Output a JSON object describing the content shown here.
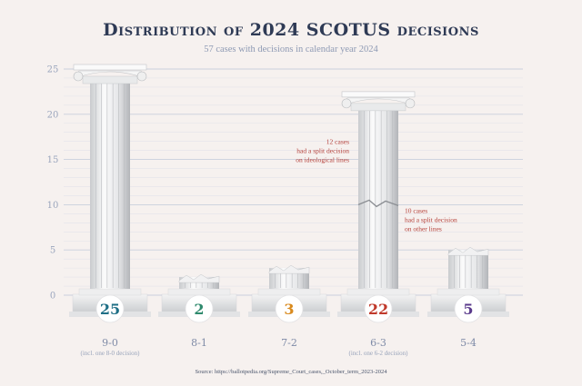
{
  "chart_data": {
    "type": "bar",
    "title": "Distribution of 2024 SCOTUS decisions",
    "subtitle": "57 cases with decisions in calendar year 2024",
    "categories": [
      "9-0",
      "8-1",
      "7-2",
      "6-3",
      "5-4"
    ],
    "sublabels": [
      "(incl. one 8-0 decision)",
      "",
      "",
      "(incl. one 6-2 decision)",
      ""
    ],
    "values": [
      25,
      2,
      3,
      22,
      5
    ],
    "value_label_colors": [
      "#1f6f86",
      "#2f8a6d",
      "#d98a1e",
      "#c0392b",
      "#5b3b8c"
    ],
    "ylim": [
      0,
      25
    ],
    "yticks": [
      0,
      5,
      10,
      15,
      20,
      25
    ],
    "grid": true,
    "segments": [
      {
        "category": "6-3",
        "from": 0,
        "to": 10,
        "note": [
          "10 cases",
          "had a split decision",
          "on other lines"
        ]
      },
      {
        "category": "6-3",
        "from": 10,
        "to": 22,
        "note": [
          "12 cases",
          "had a split decision",
          "on ideological lines"
        ]
      }
    ],
    "annotation_color": "#b5403a",
    "source": "Source: https://ballotpedia.org/Supreme_Court_cases,_October_term_2023-2024"
  }
}
